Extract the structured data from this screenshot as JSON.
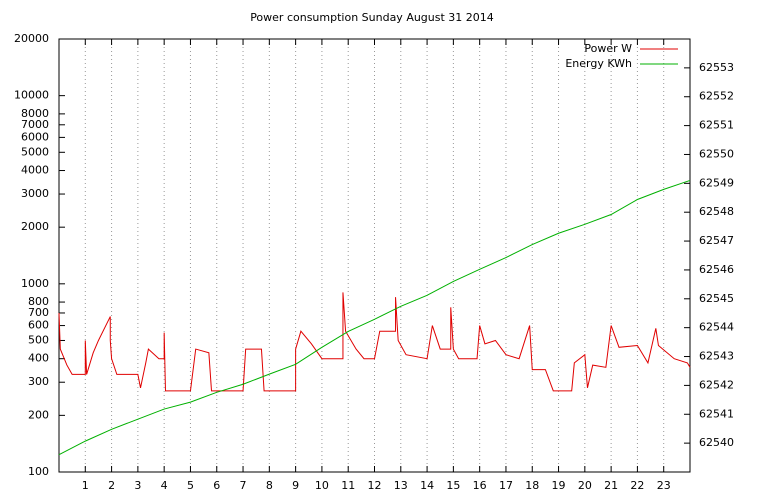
{
  "chart_data": {
    "type": "line",
    "title": "Power consumption Sunday August 31 2014",
    "xlim": [
      0,
      24
    ],
    "xticks": [
      1,
      2,
      3,
      4,
      5,
      6,
      7,
      8,
      9,
      10,
      11,
      12,
      13,
      14,
      15,
      16,
      17,
      18,
      19,
      20,
      21,
      22,
      23
    ],
    "ylim": [
      100,
      20000
    ],
    "ylog": true,
    "yticks": [
      100,
      200,
      300,
      400,
      500,
      600,
      700,
      800,
      1000,
      2000,
      3000,
      4000,
      5000,
      6000,
      7000,
      8000,
      10000,
      20000
    ],
    "y2lim": [
      62539,
      62554
    ],
    "y2ticks": [
      62540,
      62541,
      62542,
      62543,
      62544,
      62545,
      62546,
      62547,
      62548,
      62549,
      62550,
      62551,
      62552,
      62553
    ],
    "grid": "x",
    "legend": "top-right",
    "series": [
      {
        "name": "Power W",
        "color": "#e00000",
        "x": [
          0,
          0.05,
          0.3,
          0.5,
          1.0,
          1.0,
          1.05,
          1.3,
          1.5,
          1.95,
          1.95,
          2.0,
          2.2,
          3.0,
          3.1,
          3.3,
          3.4,
          3.8,
          4.0,
          4.0,
          4.05,
          5.0,
          5.2,
          5.7,
          5.8,
          6.0,
          7.0,
          7.1,
          7.7,
          7.8,
          9.0,
          9.0,
          9.2,
          9.6,
          10.0,
          10.6,
          10.8,
          10.8,
          10.9,
          11.3,
          11.6,
          12.0,
          12.2,
          12.8,
          12.8,
          12.9,
          13.2,
          14.0,
          14.2,
          14.5,
          14.9,
          14.9,
          15.0,
          15.2,
          15.9,
          16.0,
          16.2,
          16.6,
          17.0,
          17.5,
          17.9,
          18.0,
          18.5,
          18.8,
          19.5,
          19.6,
          20.0,
          20.1,
          20.3,
          20.8,
          21.0,
          21.3,
          22.0,
          22.4,
          22.7,
          22.8,
          23.4,
          23.9,
          24.0
        ],
        "values": [
          700,
          450,
          370,
          330,
          330,
          500,
          330,
          430,
          500,
          670,
          500,
          400,
          330,
          330,
          280,
          380,
          450,
          400,
          400,
          550,
          270,
          270,
          450,
          430,
          270,
          270,
          270,
          450,
          450,
          270,
          270,
          450,
          560,
          480,
          400,
          400,
          400,
          900,
          560,
          450,
          400,
          400,
          560,
          560,
          850,
          500,
          420,
          400,
          600,
          450,
          450,
          750,
          450,
          400,
          400,
          600,
          480,
          500,
          420,
          400,
          600,
          350,
          350,
          270,
          270,
          380,
          420,
          280,
          370,
          360,
          600,
          460,
          470,
          380,
          580,
          470,
          400,
          380,
          360
        ]
      },
      {
        "name": "Energy KWh",
        "color": "#00b000",
        "axis": "y2",
        "x": [
          0,
          1,
          2,
          3,
          4,
          5,
          6,
          7,
          8,
          9,
          10,
          11,
          12,
          13,
          14,
          15,
          16,
          17,
          18,
          19,
          20,
          21,
          22,
          23,
          24
        ],
        "values": [
          62539.6,
          62540.07,
          62540.48,
          62540.83,
          62541.18,
          62541.42,
          62541.76,
          62542.04,
          62542.39,
          62542.73,
          62543.32,
          62543.87,
          62544.29,
          62544.74,
          62545.12,
          62545.6,
          62546.02,
          62546.43,
          62546.88,
          62547.27,
          62547.58,
          62547.92,
          62548.44,
          62548.79,
          62549.1
        ]
      }
    ]
  }
}
